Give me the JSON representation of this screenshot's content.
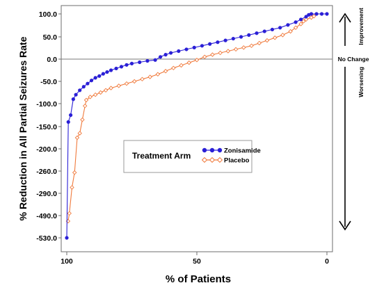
{
  "chart_data": {
    "type": "line",
    "title": "",
    "xlabel": "% of Patients",
    "ylabel": "% Reduction in All Partial Seizures Rate",
    "x_ticks": [
      "100",
      "50",
      "0"
    ],
    "y_ticks": [
      "100.0",
      "50.0",
      "0.0",
      "-50.0",
      "-100.0",
      "-150.0",
      "-200.0",
      "-260.0",
      "-290.0",
      "-490.0",
      "-530.0"
    ],
    "xlim": [
      100,
      0
    ],
    "y_axis_note": "non-linear (broken) scale; tick labels equally spaced",
    "grid": false,
    "reference_line": {
      "label": "No Change",
      "y": 0
    },
    "side_annotations": {
      "up": "Improvement",
      "down": "Worsening"
    },
    "legend": {
      "title": "Treatment Arm",
      "placement": "center-left"
    },
    "colors": {
      "Zonisamide": "#2a1fd6",
      "Placebo": "#f07a3c"
    },
    "series": [
      {
        "name": "Zonisamide",
        "marker": "filled-circle",
        "points": [
          [
            100,
            -530
          ],
          [
            99.4,
            -140
          ],
          [
            98.5,
            -125
          ],
          [
            97.5,
            -90
          ],
          [
            96.5,
            -80
          ],
          [
            95,
            -70
          ],
          [
            93.5,
            -62
          ],
          [
            92,
            -55
          ],
          [
            90.5,
            -48
          ],
          [
            89,
            -42
          ],
          [
            87.5,
            -38
          ],
          [
            86,
            -33
          ],
          [
            84.5,
            -29
          ],
          [
            83,
            -25
          ],
          [
            81,
            -21
          ],
          [
            79,
            -17
          ],
          [
            77,
            -13
          ],
          [
            75,
            -10
          ],
          [
            72,
            -7
          ],
          [
            69,
            -4
          ],
          [
            66,
            -2
          ],
          [
            64,
            5
          ],
          [
            62,
            10
          ],
          [
            60,
            14
          ],
          [
            57,
            18
          ],
          [
            54,
            22
          ],
          [
            51,
            26
          ],
          [
            48,
            30
          ],
          [
            45,
            34
          ],
          [
            42,
            38
          ],
          [
            39,
            42
          ],
          [
            36,
            46
          ],
          [
            33,
            50
          ],
          [
            30,
            54
          ],
          [
            27,
            58
          ],
          [
            24,
            62
          ],
          [
            21,
            66
          ],
          [
            18,
            70
          ],
          [
            15,
            76
          ],
          [
            12,
            82
          ],
          [
            10,
            88
          ],
          [
            8,
            94
          ],
          [
            7,
            98
          ],
          [
            6,
            100
          ],
          [
            4,
            100
          ],
          [
            2,
            100
          ],
          [
            0,
            100
          ]
        ]
      },
      {
        "name": "Placebo",
        "marker": "open-diamond",
        "points": [
          [
            99.5,
            -500
          ],
          [
            99,
            -470
          ],
          [
            98,
            -282
          ],
          [
            97,
            -262
          ],
          [
            96,
            -175
          ],
          [
            95,
            -165
          ],
          [
            94,
            -135
          ],
          [
            93,
            -105
          ],
          [
            92.5,
            -92
          ],
          [
            91,
            -85
          ],
          [
            89,
            -80
          ],
          [
            87,
            -75
          ],
          [
            85,
            -70
          ],
          [
            83,
            -65
          ],
          [
            80,
            -60
          ],
          [
            77,
            -55
          ],
          [
            74,
            -50
          ],
          [
            71,
            -45
          ],
          [
            68,
            -40
          ],
          [
            65,
            -34
          ],
          [
            62,
            -27
          ],
          [
            59,
            -20
          ],
          [
            56,
            -14
          ],
          [
            53,
            -8
          ],
          [
            50,
            -2
          ],
          [
            47,
            5
          ],
          [
            44,
            10
          ],
          [
            41,
            14
          ],
          [
            38,
            18
          ],
          [
            35,
            22
          ],
          [
            32,
            26
          ],
          [
            29,
            30
          ],
          [
            26,
            36
          ],
          [
            23,
            42
          ],
          [
            20,
            48
          ],
          [
            17,
            54
          ],
          [
            14,
            62
          ],
          [
            12,
            70
          ],
          [
            10,
            78
          ],
          [
            9,
            84
          ],
          [
            8,
            88
          ],
          [
            6,
            92
          ],
          [
            5,
            95
          ]
        ]
      }
    ]
  }
}
